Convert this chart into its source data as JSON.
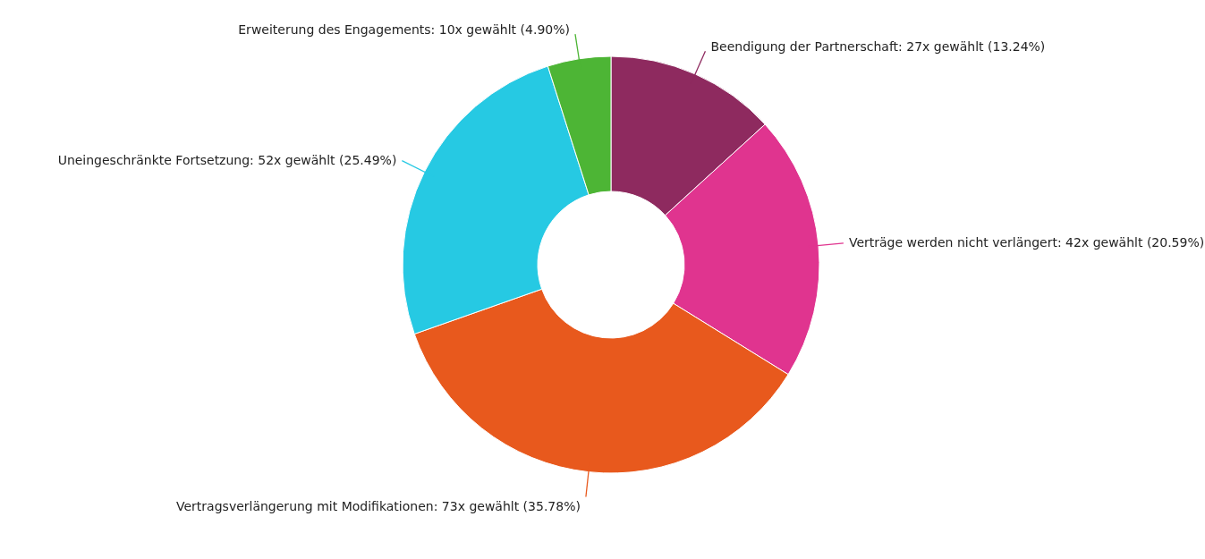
{
  "chart_data": {
    "type": "donut",
    "categories": [
      "Beendigung der Partnerschaft",
      "Verträge werden nicht verlängert",
      "Vertragsverlängerung mit Modifikationen",
      "Uneingeschränkte Fortsetzung",
      "Erweiterung des Engagements"
    ],
    "values": [
      27,
      42,
      73,
      52,
      10
    ],
    "colors": [
      "#8e2a5f",
      "#e0348f",
      "#e8591d",
      "#26c9e3",
      "#4db535"
    ],
    "value_labels": [
      "27x gewählt (13.24%)",
      "42x gewählt (20.59%)",
      "73x gewählt (35.78%)",
      "52x gewählt (25.49%)",
      "10x gewählt (4.90%)"
    ]
  }
}
